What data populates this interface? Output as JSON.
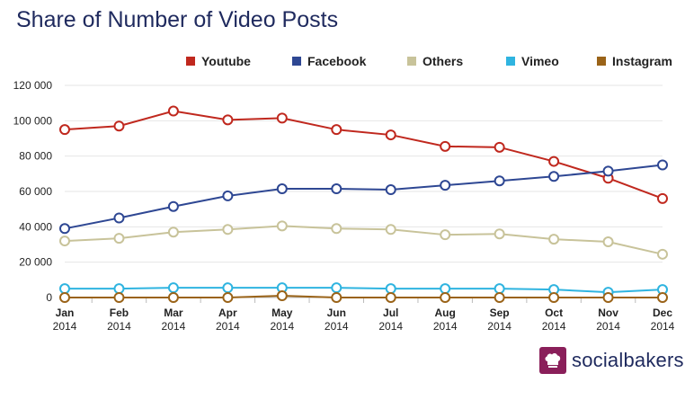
{
  "chart_data": {
    "type": "line",
    "title": "Share of Number of Video Posts",
    "xlabel": "",
    "ylabel": "",
    "categories": [
      [
        "Jan",
        "2014"
      ],
      [
        "Feb",
        "2014"
      ],
      [
        "Mar",
        "2014"
      ],
      [
        "Apr",
        "2014"
      ],
      [
        "May",
        "2014"
      ],
      [
        "Jun",
        "2014"
      ],
      [
        "Jul",
        "2014"
      ],
      [
        "Aug",
        "2014"
      ],
      [
        "Sep",
        "2014"
      ],
      [
        "Oct",
        "2014"
      ],
      [
        "Nov",
        "2014"
      ],
      [
        "Dec",
        "2014"
      ]
    ],
    "ylim": [
      0,
      120000
    ],
    "yticks": [
      0,
      20000,
      40000,
      60000,
      80000,
      100000,
      120000
    ],
    "ytick_labels": [
      "0",
      "20 000",
      "40 000",
      "60 000",
      "80 000",
      "100 000",
      "120 000"
    ],
    "grid": true,
    "legend_position": "top-right",
    "series": [
      {
        "name": "Youtube",
        "color": "#c0281e",
        "values": [
          95000,
          97000,
          105500,
          100500,
          101500,
          95000,
          92000,
          85500,
          85000,
          77000,
          67500,
          56000
        ]
      },
      {
        "name": "Facebook",
        "color": "#2e4793",
        "values": [
          39000,
          45000,
          51500,
          57500,
          61500,
          61500,
          61000,
          63500,
          66000,
          68500,
          71500,
          75000
        ]
      },
      {
        "name": "Others",
        "color": "#c8c39a",
        "values": [
          32000,
          33500,
          37000,
          38500,
          40500,
          39000,
          38500,
          35500,
          36000,
          33000,
          31500,
          24500
        ]
      },
      {
        "name": "Vimeo",
        "color": "#2fb4e0",
        "values": [
          5000,
          5000,
          5500,
          5500,
          5500,
          5500,
          5000,
          5000,
          5000,
          4500,
          3000,
          4500
        ]
      },
      {
        "name": "Instagram",
        "color": "#9a6318",
        "values": [
          0,
          0,
          0,
          0,
          1000,
          0,
          0,
          0,
          0,
          0,
          0,
          0
        ]
      }
    ]
  },
  "branding": {
    "name": "socialbakers",
    "logo_icon": "chef-hat-icon",
    "logo_color": "#8a1f5a"
  }
}
